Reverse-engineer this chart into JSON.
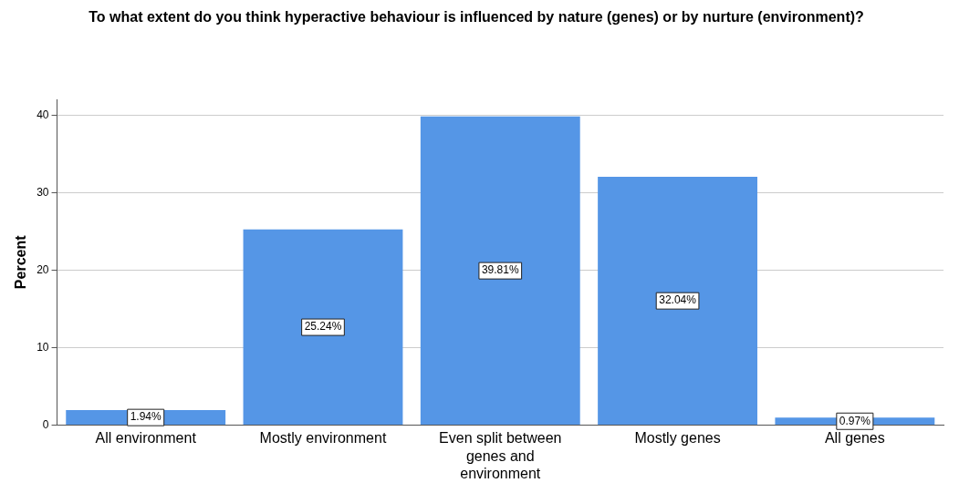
{
  "chart_data": {
    "type": "bar",
    "title": "To what extent do you think hyperactive behaviour is influenced by nature (genes) or by nurture (environment)?",
    "ylabel": "Percent",
    "categories": [
      "All environment",
      "Mostly environment",
      "Even split between genes and environment",
      "Mostly genes",
      "All genes"
    ],
    "values": [
      1.94,
      25.24,
      39.81,
      32.04,
      0.97
    ],
    "value_labels": [
      "1.94%",
      "25.24%",
      "39.81%",
      "32.04%",
      "0.97%"
    ],
    "color": "#5596e6",
    "ylim": [
      0,
      42
    ],
    "yticks": [
      0,
      10,
      20,
      30,
      40
    ],
    "grid": "y",
    "legend": false
  }
}
